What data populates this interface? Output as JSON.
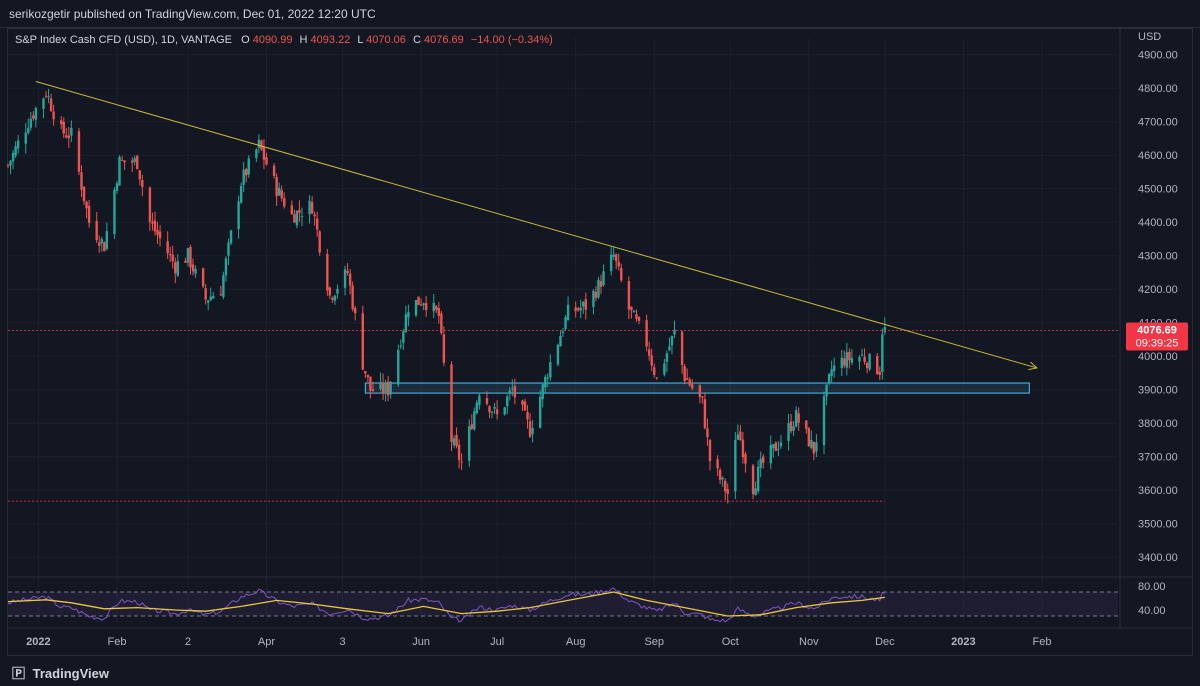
{
  "header": {
    "published": "serikozgetir published on TradingView.com, Dec 01, 2022 12:20 UTC"
  },
  "legend": {
    "symbol": "S&P Index Cash CFD (USD), 1D, VANTAGE",
    "open_label": "O",
    "open": "4090.99",
    "high_label": "H",
    "high": "4093.22",
    "low_label": "L",
    "low": "4070.06",
    "close_label": "C",
    "close": "4076.69",
    "change": "−14.00 (−0.34%)"
  },
  "price_axis": {
    "currency": "USD",
    "last_price": "4076.69",
    "countdown": "09:39:25"
  },
  "footer": {
    "brand": "TradingView"
  },
  "colors": {
    "background": "#131722",
    "up": "#26a69a",
    "down": "#ef5350",
    "trendline": "#c8b93a",
    "zone": "#4fc3f7",
    "rsi": "#7e57c2",
    "rsi_ma": "#e8c93a"
  },
  "chart_data": {
    "type": "candlestick",
    "title": "S&P Index Cash CFD (USD), 1D, VANTAGE",
    "ylabel": "USD",
    "ylim": [
      3350,
      4920
    ],
    "y_ticks": [
      "4900.00",
      "4800.00",
      "4700.00",
      "4600.00",
      "4500.00",
      "4400.00",
      "4300.00",
      "4200.00",
      "4100.00",
      "4000.00",
      "3900.00",
      "3800.00",
      "3700.00",
      "3600.00",
      "3500.00",
      "3400.00"
    ],
    "x_labels": [
      "2022",
      "Feb",
      "2",
      "Apr",
      "3",
      "Jun",
      "Jul",
      "Aug",
      "Sep",
      "Oct",
      "Nov",
      "Dec",
      "2023",
      "Feb"
    ],
    "x_start": "2021-12-20",
    "x_end": "2023-03-03",
    "closes": [
      [
        "2021-12-20",
        4570
      ],
      [
        "2021-12-28",
        4700
      ],
      [
        "2022-01-04",
        4790
      ],
      [
        "2022-01-10",
        4670
      ],
      [
        "2022-01-14",
        4660
      ],
      [
        "2022-01-21",
        4400
      ],
      [
        "2022-01-27",
        4330
      ],
      [
        "2022-02-02",
        4580
      ],
      [
        "2022-02-09",
        4580
      ],
      [
        "2022-02-14",
        4400
      ],
      [
        "2022-02-18",
        4350
      ],
      [
        "2022-02-24",
        4270
      ],
      [
        "2022-03-01",
        4300
      ],
      [
        "2022-03-08",
        4170
      ],
      [
        "2022-03-14",
        4200
      ],
      [
        "2022-03-22",
        4520
      ],
      [
        "2022-03-29",
        4630
      ],
      [
        "2022-04-05",
        4500
      ],
      [
        "2022-04-11",
        4420
      ],
      [
        "2022-04-19",
        4450
      ],
      [
        "2022-04-26",
        4180
      ],
      [
        "2022-05-03",
        4250
      ],
      [
        "2022-05-09",
        3980
      ],
      [
        "2022-05-12",
        3900
      ],
      [
        "2022-05-19",
        3900
      ],
      [
        "2022-05-27",
        4150
      ],
      [
        "2022-06-02",
        4170
      ],
      [
        "2022-06-08",
        4120
      ],
      [
        "2022-06-13",
        3750
      ],
      [
        "2022-06-17",
        3680
      ],
      [
        "2022-06-24",
        3900
      ],
      [
        "2022-07-01",
        3820
      ],
      [
        "2022-07-07",
        3900
      ],
      [
        "2022-07-14",
        3780
      ],
      [
        "2022-07-22",
        3980
      ],
      [
        "2022-07-29",
        4130
      ],
      [
        "2022-08-05",
        4150
      ],
      [
        "2022-08-10",
        4210
      ],
      [
        "2022-08-16",
        4300
      ],
      [
        "2022-08-22",
        4140
      ],
      [
        "2022-08-29",
        4040
      ],
      [
        "2022-09-02",
        3930
      ],
      [
        "2022-09-09",
        4070
      ],
      [
        "2022-09-13",
        3940
      ],
      [
        "2022-09-20",
        3860
      ],
      [
        "2022-09-23",
        3690
      ],
      [
        "2022-09-30",
        3590
      ],
      [
        "2022-10-04",
        3780
      ],
      [
        "2022-10-10",
        3610
      ],
      [
        "2022-10-13",
        3670
      ],
      [
        "2022-10-21",
        3750
      ],
      [
        "2022-10-27",
        3820
      ],
      [
        "2022-11-03",
        3720
      ],
      [
        "2022-11-10",
        3960
      ],
      [
        "2022-11-15",
        3990
      ],
      [
        "2022-11-22",
        4000
      ],
      [
        "2022-11-29",
        3960
      ],
      [
        "2022-11-30",
        4080
      ],
      [
        "2022-12-01",
        4077
      ]
    ],
    "levels": [
      {
        "name": "last price",
        "y": 4076.69
      },
      {
        "name": "support",
        "y": 3567
      }
    ],
    "zone": {
      "y_from": 3890,
      "y_to": 3920,
      "x_from": "2022-05-10",
      "x_to": "2023-01-27"
    },
    "trendline": {
      "x1": "2021-12-31",
      "y1": 4820,
      "x2": "2023-01-30",
      "y2": 3965
    },
    "rsi": {
      "ylim": [
        20,
        90
      ],
      "y_ticks": [
        "80.00",
        "40.00"
      ],
      "bands": [
        70,
        30
      ],
      "points": [
        [
          "2021-12-20",
          52
        ],
        [
          "2021-12-28",
          58
        ],
        [
          "2022-01-04",
          62
        ],
        [
          "2022-01-10",
          45
        ],
        [
          "2022-01-14",
          44
        ],
        [
          "2022-01-21",
          30
        ],
        [
          "2022-01-27",
          26
        ],
        [
          "2022-02-02",
          55
        ],
        [
          "2022-02-09",
          54
        ],
        [
          "2022-02-14",
          40
        ],
        [
          "2022-02-18",
          38
        ],
        [
          "2022-02-24",
          34
        ],
        [
          "2022-03-01",
          40
        ],
        [
          "2022-03-08",
          32
        ],
        [
          "2022-03-14",
          38
        ],
        [
          "2022-03-22",
          62
        ],
        [
          "2022-03-29",
          72
        ],
        [
          "2022-04-05",
          55
        ],
        [
          "2022-04-11",
          46
        ],
        [
          "2022-04-19",
          50
        ],
        [
          "2022-04-26",
          34
        ],
        [
          "2022-05-03",
          42
        ],
        [
          "2022-05-09",
          28
        ],
        [
          "2022-05-12",
          26
        ],
        [
          "2022-05-19",
          30
        ],
        [
          "2022-05-27",
          56
        ],
        [
          "2022-06-02",
          58
        ],
        [
          "2022-06-08",
          52
        ],
        [
          "2022-06-13",
          26
        ],
        [
          "2022-06-17",
          22
        ],
        [
          "2022-06-24",
          45
        ],
        [
          "2022-07-01",
          40
        ],
        [
          "2022-07-07",
          48
        ],
        [
          "2022-07-14",
          40
        ],
        [
          "2022-07-22",
          56
        ],
        [
          "2022-07-29",
          66
        ],
        [
          "2022-08-05",
          66
        ],
        [
          "2022-08-10",
          70
        ],
        [
          "2022-08-16",
          76
        ],
        [
          "2022-08-22",
          55
        ],
        [
          "2022-08-29",
          44
        ],
        [
          "2022-09-02",
          38
        ],
        [
          "2022-09-09",
          52
        ],
        [
          "2022-09-13",
          36
        ],
        [
          "2022-09-20",
          32
        ],
        [
          "2022-09-23",
          24
        ],
        [
          "2022-09-30",
          22
        ],
        [
          "2022-10-04",
          42
        ],
        [
          "2022-10-10",
          30
        ],
        [
          "2022-10-13",
          34
        ],
        [
          "2022-10-21",
          44
        ],
        [
          "2022-10-27",
          52
        ],
        [
          "2022-11-03",
          42
        ],
        [
          "2022-11-10",
          60
        ],
        [
          "2022-11-15",
          63
        ],
        [
          "2022-11-22",
          62
        ],
        [
          "2022-11-29",
          56
        ],
        [
          "2022-11-30",
          66
        ],
        [
          "2022-12-01",
          65
        ]
      ],
      "ma_points": [
        [
          "2021-12-20",
          54
        ],
        [
          "2022-01-04",
          57
        ],
        [
          "2022-01-14",
          52
        ],
        [
          "2022-01-27",
          42
        ],
        [
          "2022-02-09",
          44
        ],
        [
          "2022-02-24",
          40
        ],
        [
          "2022-03-08",
          38
        ],
        [
          "2022-03-22",
          46
        ],
        [
          "2022-04-05",
          56
        ],
        [
          "2022-04-19",
          50
        ],
        [
          "2022-05-03",
          42
        ],
        [
          "2022-05-19",
          34
        ],
        [
          "2022-06-02",
          46
        ],
        [
          "2022-06-17",
          34
        ],
        [
          "2022-07-01",
          38
        ],
        [
          "2022-07-14",
          44
        ],
        [
          "2022-07-29",
          56
        ],
        [
          "2022-08-16",
          70
        ],
        [
          "2022-08-29",
          56
        ],
        [
          "2022-09-13",
          44
        ],
        [
          "2022-09-30",
          30
        ],
        [
          "2022-10-13",
          32
        ],
        [
          "2022-10-27",
          44
        ],
        [
          "2022-11-10",
          52
        ],
        [
          "2022-11-22",
          56
        ],
        [
          "2022-12-01",
          61
        ]
      ]
    }
  }
}
